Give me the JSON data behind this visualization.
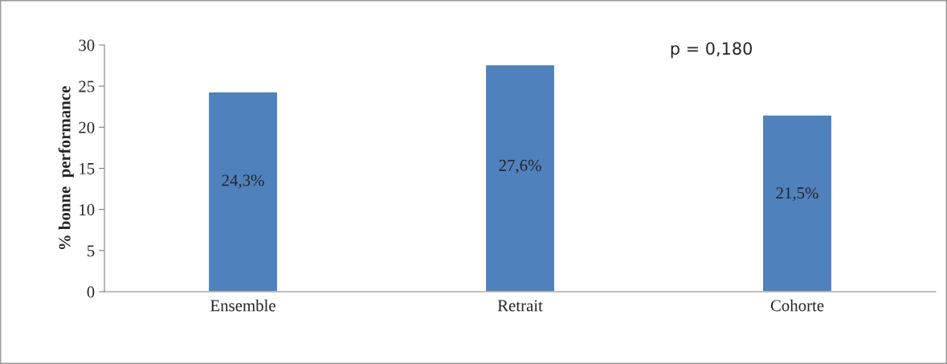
{
  "chart_data": {
    "type": "bar",
    "ylabel": "% bonne  performance",
    "categories": [
      "Ensemble",
      "Retrait",
      "Cohorte"
    ],
    "values": [
      24.3,
      27.6,
      21.5
    ],
    "color": "#4f81bd",
    "value_labels": [
      "24,3%",
      "27,6%",
      "21,5%"
    ],
    "ylim": [
      0,
      30
    ],
    "yticks": [
      0,
      5,
      10,
      15,
      20,
      25,
      30
    ],
    "annotations": [
      "p = 0,180"
    ],
    "grid": false
  }
}
